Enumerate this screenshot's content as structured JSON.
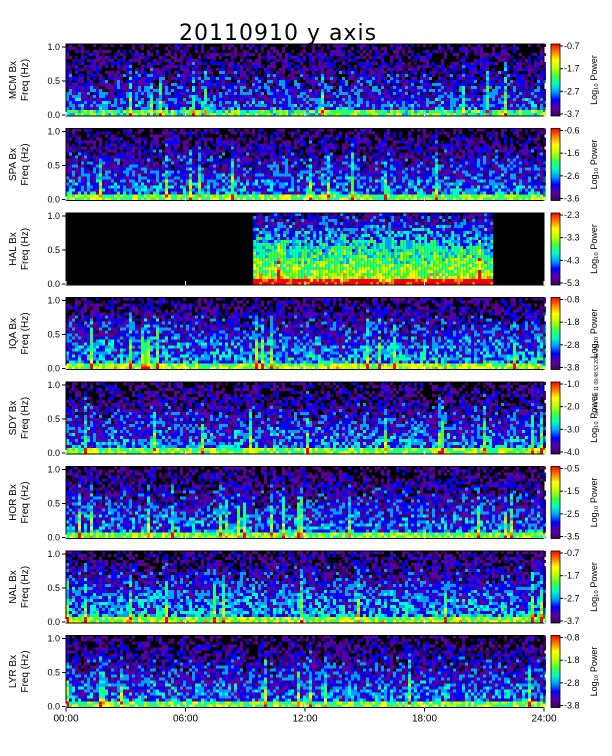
{
  "chart_data": {
    "type": "heatmap",
    "title": "20110910 y axis",
    "credit": "set Fri Oct 11 09:48:53 2011 2012",
    "x_ticks": [
      "00:00",
      "06:00",
      "12:00",
      "18:00",
      "24:00"
    ],
    "x_range_hours": [
      0,
      24
    ],
    "y_ticks": [
      "0.0",
      "0.5",
      "1.0"
    ],
    "y_range_hz": [
      0,
      1
    ],
    "colorbar_label": "Log₁₀ Power",
    "colormap": [
      "#000000",
      "#3a0060",
      "#5a00a0",
      "#0000ff",
      "#00a0ff",
      "#00ffc0",
      "#40ff40",
      "#c0ff00",
      "#ffff00",
      "#ff8000",
      "#ff0000"
    ],
    "panels": [
      {
        "station": "MCM Bx",
        "ylabel": "Freq (Hz)",
        "colorbar_ticks": [
          "-0.7",
          "-1.7",
          "-2.7",
          "-3.7"
        ],
        "data_start_hours": 0,
        "data_end_hours": 24,
        "intensity": 0.35
      },
      {
        "station": "SPA Bx",
        "ylabel": "Freq (Hz)",
        "colorbar_ticks": [
          "-0.6",
          "-1.6",
          "-2.6",
          "-3.6"
        ],
        "data_start_hours": 0,
        "data_end_hours": 24,
        "intensity": 0.4
      },
      {
        "station": "HAL Bx",
        "ylabel": "Freq (Hz)",
        "colorbar_ticks": [
          "-2.3",
          "-3.3",
          "-4.3",
          "-5.3"
        ],
        "data_start_hours": 9.4,
        "data_end_hours": 21.3,
        "intensity": 0.8
      },
      {
        "station": "IQA Bx",
        "ylabel": "Freq (Hz)",
        "colorbar_ticks": [
          "-0.8",
          "-1.8",
          "-2.8",
          "-3.8"
        ],
        "data_start_hours": 0,
        "data_end_hours": 24,
        "intensity": 0.45
      },
      {
        "station": "SDY Bx",
        "ylabel": "Freq (Hz)",
        "colorbar_ticks": [
          "-1.0",
          "-2.0",
          "-3.0",
          "-4.0"
        ],
        "data_start_hours": 0,
        "data_end_hours": 24,
        "intensity": 0.4
      },
      {
        "station": "HOR Bx",
        "ylabel": "Freq (Hz)",
        "colorbar_ticks": [
          "-0.5",
          "-1.5",
          "-2.5",
          "-3.5"
        ],
        "data_start_hours": 0,
        "data_end_hours": 24,
        "intensity": 0.4
      },
      {
        "station": "NAL Bx",
        "ylabel": "Freq (Hz)",
        "colorbar_ticks": [
          "-0.7",
          "-1.7",
          "-2.7",
          "-3.7"
        ],
        "data_start_hours": 0,
        "data_end_hours": 24,
        "intensity": 0.45
      },
      {
        "station": "LYR Bx",
        "ylabel": "Freq (Hz)",
        "colorbar_ticks": [
          "-0.8",
          "-1.8",
          "-2.8",
          "-3.8"
        ],
        "data_start_hours": 0,
        "data_end_hours": 24,
        "intensity": 0.4
      }
    ]
  }
}
